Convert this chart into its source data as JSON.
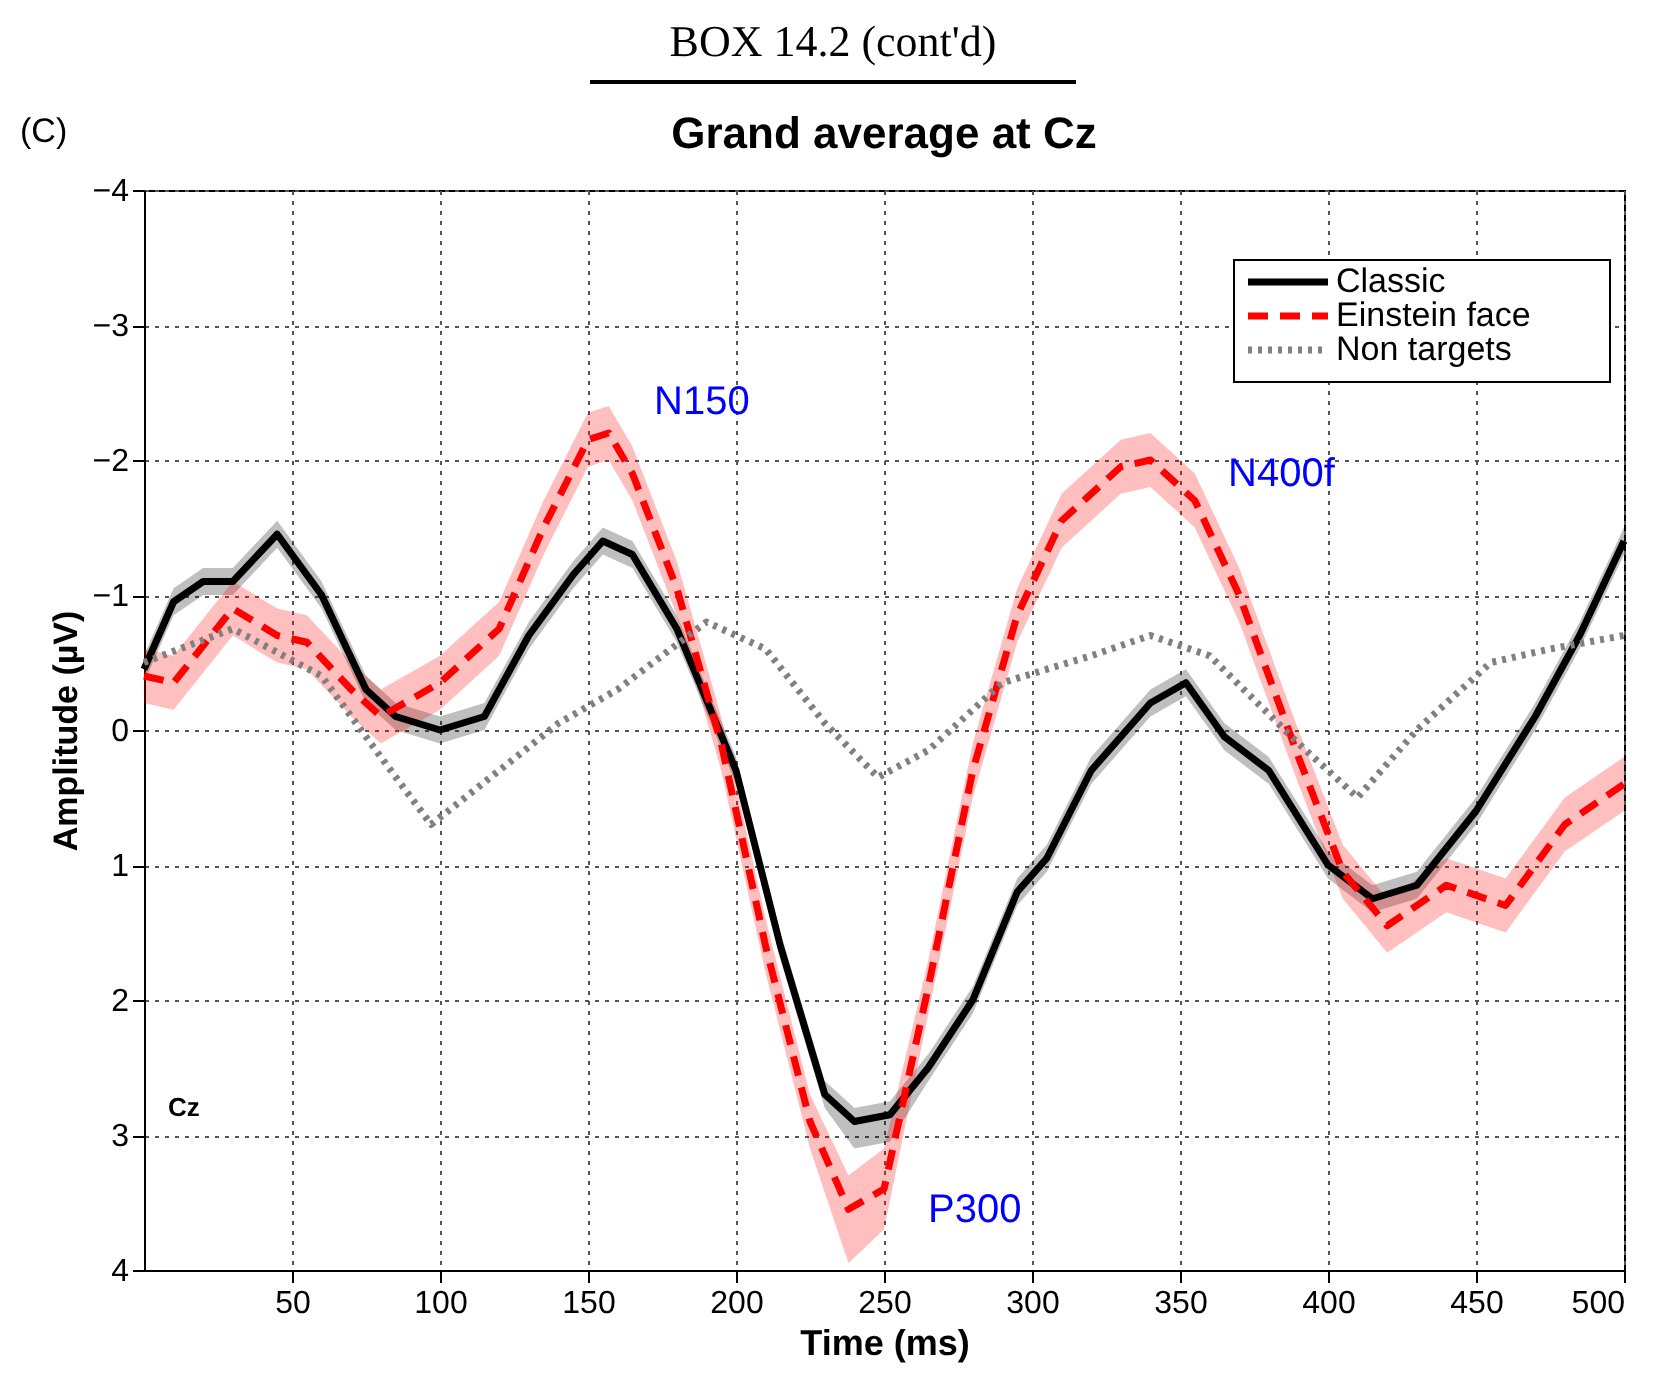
{
  "chart_data": {
    "type": "line",
    "title": "Grand average at Cz",
    "xlabel": "Time (ms)",
    "ylabel": "Amplitude (µV)",
    "annotations": [
      "BOX 14.2 (cont'd)",
      "(C)",
      "Cz",
      "N150",
      "P300",
      "N400f"
    ],
    "xlim": [
      0,
      500
    ],
    "xticks": [
      50,
      100,
      150,
      200,
      250,
      300,
      350,
      400,
      450,
      500
    ],
    "ylim": [
      4,
      -4
    ],
    "yticks": [
      -4,
      -3,
      -2,
      -1,
      0,
      1,
      2,
      3,
      4
    ],
    "grid": true,
    "legend": "top right",
    "series": [
      {
        "name": "Classic",
        "color": "#000000",
        "line_style": "solid",
        "x": [
          0,
          10,
          20,
          30,
          45,
          60,
          75,
          85,
          100,
          115,
          130,
          145,
          155,
          165,
          180,
          200,
          215,
          230,
          240,
          252,
          265,
          280,
          295,
          305,
          320,
          340,
          352,
          365,
          380,
          400,
          415,
          430,
          450,
          470,
          485,
          500
        ],
        "values": [
          -0.45,
          -0.95,
          -1.1,
          -1.1,
          -1.45,
          -1.0,
          -0.3,
          -0.1,
          0.0,
          -0.1,
          -0.7,
          -1.15,
          -1.4,
          -1.3,
          -0.75,
          0.3,
          1.6,
          2.7,
          2.9,
          2.85,
          2.5,
          2.0,
          1.2,
          0.95,
          0.3,
          -0.2,
          -0.35,
          0.05,
          0.3,
          1.0,
          1.25,
          1.15,
          0.6,
          -0.1,
          -0.7,
          -1.4
        ],
        "lower": [
          -0.55,
          -1.05,
          -1.2,
          -1.2,
          -1.55,
          -1.1,
          -0.4,
          -0.2,
          -0.1,
          -0.2,
          -0.8,
          -1.25,
          -1.5,
          -1.4,
          -0.85,
          0.2,
          1.5,
          2.6,
          2.8,
          2.75,
          2.4,
          1.9,
          1.1,
          0.85,
          0.2,
          -0.3,
          -0.45,
          -0.05,
          0.2,
          0.9,
          1.15,
          1.05,
          0.5,
          -0.2,
          -0.8,
          -1.5
        ],
        "upper": [
          -0.35,
          -0.85,
          -1.0,
          -1.0,
          -1.35,
          -0.9,
          -0.2,
          0.0,
          0.1,
          0.0,
          -0.6,
          -1.05,
          -1.3,
          -1.2,
          -0.65,
          0.4,
          1.7,
          2.8,
          3.1,
          3.05,
          2.6,
          2.1,
          1.3,
          1.05,
          0.4,
          -0.1,
          -0.25,
          0.15,
          0.4,
          1.1,
          1.35,
          1.25,
          0.7,
          0.0,
          -0.6,
          -1.3
        ]
      },
      {
        "name": "Einstein face",
        "color": "#ff0000",
        "line_style": "dashed",
        "x": [
          0,
          10,
          30,
          45,
          55,
          70,
          80,
          100,
          120,
          135,
          150,
          157,
          165,
          180,
          195,
          210,
          225,
          238,
          250,
          265,
          280,
          295,
          310,
          330,
          340,
          355,
          370,
          390,
          405,
          420,
          440,
          460,
          480,
          500
        ],
        "values": [
          -0.4,
          -0.35,
          -0.9,
          -0.7,
          -0.65,
          -0.3,
          -0.1,
          -0.35,
          -0.75,
          -1.5,
          -2.15,
          -2.2,
          -1.9,
          -1.05,
          0.1,
          1.6,
          2.9,
          3.55,
          3.4,
          1.9,
          0.3,
          -0.85,
          -1.55,
          -1.95,
          -2.0,
          -1.7,
          -1.0,
          0.2,
          1.05,
          1.45,
          1.15,
          1.3,
          0.7,
          0.4
        ],
        "lower": [
          -0.6,
          -0.55,
          -1.1,
          -0.9,
          -0.85,
          -0.5,
          -0.3,
          -0.55,
          -0.95,
          -1.7,
          -2.35,
          -2.4,
          -2.1,
          -1.25,
          -0.1,
          1.4,
          2.7,
          3.3,
          3.1,
          1.7,
          0.1,
          -1.05,
          -1.75,
          -2.15,
          -2.2,
          -1.9,
          -1.2,
          0.0,
          0.85,
          1.25,
          0.95,
          1.1,
          0.5,
          0.2
        ],
        "upper": [
          -0.2,
          -0.15,
          -0.7,
          -0.5,
          -0.45,
          -0.1,
          0.1,
          -0.15,
          -0.55,
          -1.3,
          -1.95,
          -2.0,
          -1.7,
          -0.85,
          0.3,
          1.8,
          3.1,
          3.95,
          3.7,
          2.1,
          0.5,
          -0.65,
          -1.35,
          -1.75,
          -1.8,
          -1.5,
          -0.8,
          0.4,
          1.25,
          1.65,
          1.35,
          1.5,
          0.9,
          0.6
        ]
      },
      {
        "name": "Non targets",
        "color": "#808080",
        "line_style": "dotted",
        "x": [
          0,
          30,
          60,
          80,
          97,
          120,
          140,
          160,
          190,
          210,
          230,
          248,
          265,
          290,
          320,
          340,
          360,
          390,
          410,
          430,
          455,
          475,
          500
        ],
        "values": [
          -0.5,
          -0.75,
          -0.4,
          0.2,
          0.7,
          0.3,
          -0.05,
          -0.3,
          -0.8,
          -0.6,
          -0.05,
          0.35,
          0.15,
          -0.35,
          -0.55,
          -0.7,
          -0.55,
          0.1,
          0.5,
          0.0,
          -0.5,
          -0.6,
          -0.7
        ]
      }
    ]
  }
}
